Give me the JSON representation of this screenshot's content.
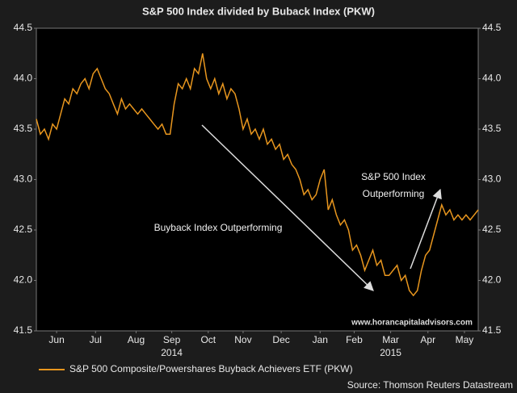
{
  "chart_data": {
    "type": "line",
    "title": "S&P 500 Index divided by Buback Index (PKW)",
    "x": [
      0,
      1,
      2,
      3,
      4,
      5,
      6,
      7,
      8,
      9,
      10,
      11,
      12,
      13,
      14,
      15,
      16,
      17,
      18,
      19,
      20,
      21,
      22,
      23,
      24,
      25,
      26,
      27,
      28,
      29,
      30,
      31,
      32,
      33,
      34,
      35,
      36,
      37,
      38,
      39,
      40,
      41,
      42,
      43,
      44,
      45,
      46,
      47,
      48,
      49,
      50,
      51,
      52,
      53,
      54,
      55,
      56,
      57,
      58,
      59,
      60,
      61,
      62,
      63,
      64,
      65,
      66,
      67,
      68,
      69,
      70,
      71,
      72,
      73,
      74,
      75,
      76,
      77,
      78,
      79,
      80,
      81,
      82,
      83,
      84,
      85,
      86,
      87,
      88,
      89,
      90,
      91,
      92,
      93,
      94,
      95,
      96,
      97,
      98,
      99,
      100,
      101,
      102,
      103,
      104,
      105,
      106,
      107,
      108,
      109
    ],
    "series": [
      {
        "name": "S&P 500 Composite/Powershares Buyback Achievers ETF (PKW)",
        "color": "#e8961e",
        "values": [
          43.6,
          43.45,
          43.5,
          43.4,
          43.55,
          43.5,
          43.65,
          43.8,
          43.75,
          43.9,
          43.85,
          43.95,
          44.0,
          43.9,
          44.05,
          44.1,
          44.0,
          43.9,
          43.85,
          43.75,
          43.65,
          43.8,
          43.7,
          43.75,
          43.7,
          43.65,
          43.7,
          43.65,
          43.6,
          43.55,
          43.5,
          43.55,
          43.45,
          43.45,
          43.75,
          43.95,
          43.9,
          44.0,
          43.9,
          44.1,
          44.05,
          44.25,
          44.0,
          43.9,
          44.0,
          43.85,
          43.95,
          43.8,
          43.9,
          43.85,
          43.7,
          43.5,
          43.6,
          43.45,
          43.5,
          43.4,
          43.5,
          43.35,
          43.4,
          43.3,
          43.35,
          43.2,
          43.25,
          43.15,
          43.1,
          43.0,
          42.85,
          42.9,
          42.8,
          42.85,
          43.0,
          43.1,
          42.7,
          42.8,
          42.65,
          42.55,
          42.6,
          42.5,
          42.3,
          42.35,
          42.25,
          42.1,
          42.2,
          42.3,
          42.15,
          42.2,
          42.05,
          42.05,
          42.1,
          42.15,
          42.0,
          42.05,
          41.9,
          41.85,
          41.9,
          42.1,
          42.25,
          42.3,
          42.45,
          42.6,
          42.75,
          42.65,
          42.7,
          42.6,
          42.65,
          42.6,
          42.65,
          42.6,
          42.65,
          42.7
        ]
      }
    ],
    "xlim": [
      0,
      109
    ],
    "xticks": [
      {
        "value": 5,
        "label": "Jun"
      },
      {
        "value": 14.6,
        "label": "Jul"
      },
      {
        "value": 24.6,
        "label": "Aug"
      },
      {
        "value": 33.4,
        "label": "Sep"
      },
      {
        "value": 42.4,
        "label": "Oct"
      },
      {
        "value": 51,
        "label": "Nov"
      },
      {
        "value": 60.4,
        "label": "Dec"
      },
      {
        "value": 70,
        "label": "Jan"
      },
      {
        "value": 78.4,
        "label": "Feb"
      },
      {
        "value": 87.4,
        "label": "Mar"
      },
      {
        "value": 96.6,
        "label": "Apr"
      },
      {
        "value": 105.6,
        "label": "May"
      }
    ],
    "year_labels": [
      {
        "value": 33.4,
        "label": "2014"
      },
      {
        "value": 87.4,
        "label": "2015"
      }
    ],
    "ylim": [
      41.5,
      44.5
    ],
    "yticks": [
      {
        "value": 41.5,
        "label": "41.5"
      },
      {
        "value": 42.0,
        "label": "42.0"
      },
      {
        "value": 42.5,
        "label": "42.5"
      },
      {
        "value": 43.0,
        "label": "43.0"
      },
      {
        "value": 43.5,
        "label": "43.5"
      },
      {
        "value": 44.0,
        "label": "44.0"
      },
      {
        "value": 44.5,
        "label": "44.5"
      }
    ],
    "annotations": [
      "Buyback Index Outperforming",
      "S&P 500 Index",
      "Outperforming",
      "www.horancapitaladvisors.com"
    ],
    "source": "Source: Thomson Reuters Datastream"
  }
}
